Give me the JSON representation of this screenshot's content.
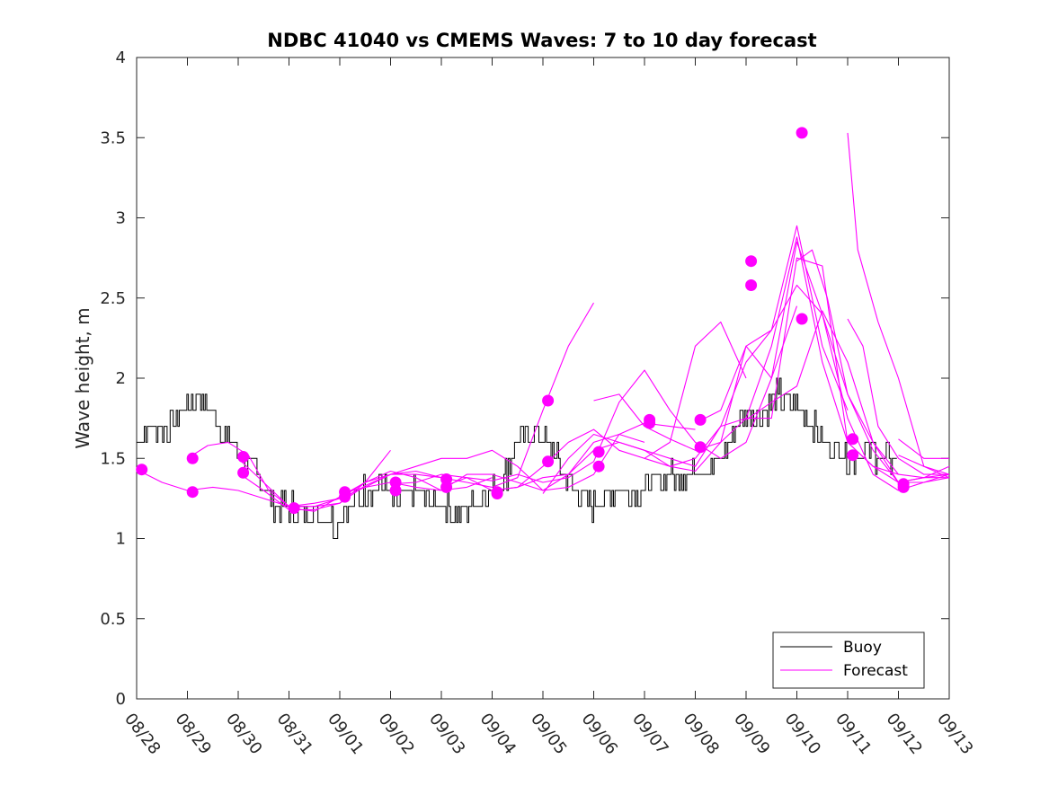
{
  "chart_data": {
    "type": "line",
    "title": "NDBC 41040 vs CMEMS Waves: 7 to 10 day forecast",
    "xlabel": "",
    "ylabel": "Wave height, m",
    "xlim": [
      0,
      16
    ],
    "ylim": [
      0,
      4
    ],
    "x_tick_labels": [
      "08/28",
      "08/29",
      "08/30",
      "08/31",
      "09/01",
      "09/02",
      "09/03",
      "09/04",
      "09/05",
      "09/06",
      "09/07",
      "09/08",
      "09/09",
      "09/10",
      "09/11",
      "09/12",
      "09/13"
    ],
    "y_ticks": [
      0,
      0.5,
      1,
      1.5,
      2,
      2.5,
      3,
      3.5,
      4
    ],
    "y_tick_labels": [
      "0",
      "0.5",
      "1",
      "1.5",
      "2",
      "2.5",
      "3",
      "3.5",
      "4"
    ],
    "legend": {
      "location": "bottom-right",
      "entries": [
        "Buoy",
        "Forecast"
      ]
    },
    "colors": {
      "buoy": "#000000",
      "forecast": "#ff00ff"
    },
    "buoy": {
      "name": "Buoy",
      "x": [
        0,
        0.3,
        0.6,
        0.9,
        1.2,
        1.5,
        1.8,
        2.1,
        2.4,
        2.7,
        3.0,
        3.3,
        3.6,
        3.9,
        4.2,
        4.5,
        4.8,
        5.1,
        5.4,
        5.7,
        6.0,
        6.3,
        6.6,
        6.9,
        7.2,
        7.5,
        7.8,
        8.1,
        8.4,
        8.7,
        9.0,
        9.3,
        9.6,
        9.9,
        10.2,
        10.5,
        10.8,
        11.1,
        11.4,
        11.7,
        12.0,
        12.3,
        12.6,
        12.9,
        13.2,
        13.5,
        13.8,
        14.1,
        14.4,
        14.7,
        15.0
      ],
      "y": [
        1.6,
        1.7,
        1.7,
        1.8,
        1.9,
        1.8,
        1.6,
        1.5,
        1.4,
        1.2,
        1.2,
        1.15,
        1.15,
        1.1,
        1.2,
        1.3,
        1.35,
        1.2,
        1.3,
        1.25,
        1.2,
        1.15,
        1.2,
        1.3,
        1.35,
        1.6,
        1.65,
        1.6,
        1.4,
        1.3,
        1.2,
        1.3,
        1.3,
        1.3,
        1.35,
        1.4,
        1.4,
        1.45,
        1.45,
        1.6,
        1.8,
        1.75,
        1.9,
        1.85,
        1.75,
        1.6,
        1.55,
        1.5,
        1.55,
        1.5,
        1.5
      ]
    },
    "forecast_series": [
      {
        "x": [
          0,
          0.5,
          1.0,
          1.5,
          2.0,
          2.5,
          3.0,
          3.5,
          4.0,
          4.5,
          5.0
        ],
        "y": [
          1.43,
          1.35,
          1.3,
          1.32,
          1.3,
          1.25,
          1.2,
          1.22,
          1.25,
          1.35,
          1.55
        ]
      },
      {
        "x": [
          1.0,
          1.4,
          1.8,
          2.2,
          2.6,
          3.0,
          3.5,
          4.0,
          4.5,
          5.0,
          5.5,
          6.0
        ],
        "y": [
          1.5,
          1.58,
          1.6,
          1.52,
          1.3,
          1.2,
          1.2,
          1.25,
          1.32,
          1.4,
          1.42,
          1.38
        ]
      },
      {
        "x": [
          2.0,
          2.5,
          3.0,
          3.5,
          4.0,
          4.5,
          5.0,
          5.5,
          6.0,
          6.5,
          7.0
        ],
        "y": [
          1.5,
          1.35,
          1.2,
          1.2,
          1.22,
          1.35,
          1.42,
          1.38,
          1.3,
          1.32,
          1.38
        ]
      },
      {
        "x": [
          2.0,
          2.5,
          3.0,
          3.5,
          4.0,
          4.5,
          5.0,
          5.5,
          6.0,
          6.5,
          7.0,
          7.5,
          8.0,
          8.5,
          9.0
        ],
        "y": [
          1.41,
          1.3,
          1.18,
          1.18,
          1.22,
          1.33,
          1.4,
          1.4,
          1.38,
          1.35,
          1.32,
          1.38,
          1.8,
          2.2,
          2.47
        ]
      },
      {
        "x": [
          3.0,
          3.5,
          4.0,
          4.5,
          5.0,
          5.5,
          6.0,
          6.5,
          7.0,
          7.5,
          8.0,
          8.5,
          9.0,
          9.5,
          10.0
        ],
        "y": [
          1.19,
          1.17,
          1.26,
          1.35,
          1.4,
          1.45,
          1.5,
          1.5,
          1.55,
          1.45,
          1.3,
          1.4,
          1.6,
          1.65,
          1.6
        ]
      },
      {
        "x": [
          4.0,
          4.5,
          5.0,
          5.5,
          6.0,
          6.5,
          7.0,
          7.5,
          8.0,
          8.5,
          9.0,
          9.5,
          10.0,
          10.5,
          11.0
        ],
        "y": [
          1.28,
          1.32,
          1.35,
          1.32,
          1.3,
          1.4,
          1.4,
          1.35,
          1.3,
          1.32,
          1.4,
          1.65,
          1.72,
          1.7,
          1.68
        ]
      },
      {
        "x": [
          5.0,
          5.5,
          6.0,
          6.5,
          7.0,
          7.5,
          8.0,
          8.5,
          9.0,
          9.5,
          10.0,
          10.5,
          11.0,
          11.5,
          12.0
        ],
        "y": [
          1.34,
          1.35,
          1.4,
          1.38,
          1.3,
          1.32,
          1.45,
          1.6,
          1.68,
          1.55,
          1.5,
          1.6,
          2.2,
          2.35,
          2.0
        ]
      },
      {
        "x": [
          6.0,
          6.5,
          7.0,
          7.5,
          8.0,
          8.5,
          9.0,
          9.5,
          10.0,
          10.5,
          11.0,
          11.5,
          12.0,
          12.5,
          13.0
        ],
        "y": [
          1.32,
          1.38,
          1.36,
          1.4,
          1.35,
          1.38,
          1.48,
          1.85,
          2.05,
          1.8,
          1.6,
          1.5,
          1.6,
          2.0,
          2.45
        ]
      },
      {
        "x": [
          7.0,
          7.5,
          8.0,
          8.5,
          9.0,
          9.5,
          10.0,
          10.5,
          11.0,
          11.5,
          12.0,
          12.5,
          13.0,
          13.5,
          14.0
        ],
        "y": [
          1.3,
          1.32,
          1.38,
          1.4,
          1.55,
          1.6,
          1.55,
          1.5,
          1.45,
          1.7,
          2.1,
          2.3,
          2.95,
          2.2,
          1.8
        ]
      },
      {
        "x": [
          8.0,
          8.5,
          9.0,
          9.5,
          10.0,
          10.5,
          11.0,
          11.5,
          12.0,
          12.5,
          13.0,
          13.5,
          14.0,
          14.5,
          15.0
        ],
        "y": [
          1.28,
          1.5,
          1.65,
          1.6,
          1.55,
          1.45,
          1.42,
          1.6,
          2.2,
          2.0,
          2.85,
          2.4,
          1.9,
          1.6,
          1.4
        ]
      },
      {
        "x": [
          9.0,
          9.5,
          10.0,
          10.5,
          11.0,
          11.5,
          12.0,
          12.5,
          13.0,
          13.5,
          14.0,
          14.5,
          15.0,
          15.5,
          16.0
        ],
        "y": [
          1.86,
          1.9,
          1.7,
          1.62,
          1.55,
          1.6,
          1.75,
          1.75,
          2.75,
          2.7,
          1.6,
          1.45,
          1.4,
          1.38,
          1.38
        ]
      },
      {
        "x": [
          10.0,
          10.5,
          11.0,
          11.5,
          12.0,
          12.5,
          13.0,
          13.5,
          14.0,
          14.5,
          15.0,
          15.5,
          16.0
        ],
        "y": [
          1.5,
          1.45,
          1.5,
          1.7,
          1.75,
          2.2,
          2.88,
          2.1,
          1.6,
          1.45,
          1.35,
          1.38,
          1.4
        ]
      },
      {
        "x": [
          11.0,
          11.5,
          12.0,
          12.5,
          13.0,
          13.5,
          14.0,
          14.5,
          15.0,
          15.5,
          16.0
        ],
        "y": [
          1.72,
          1.8,
          2.2,
          2.3,
          2.58,
          2.4,
          1.75,
          1.4,
          1.3,
          1.35,
          1.4
        ]
      },
      {
        "x": [
          12.0,
          12.5,
          13.0,
          13.5,
          14.0,
          14.5,
          15.0,
          15.5,
          16.0
        ],
        "y": [
          1.74,
          1.85,
          1.95,
          2.42,
          2.1,
          1.6,
          1.35,
          1.38,
          1.45
        ]
      },
      {
        "x": [
          13.0,
          13.3,
          13.6,
          14.0,
          14.5,
          15.0,
          15.5,
          16.0
        ],
        "y": [
          2.73,
          2.8,
          2.5,
          1.9,
          1.55,
          1.35,
          1.35,
          1.38
        ]
      },
      {
        "x": [
          14.0,
          14.2,
          14.6,
          15.0,
          15.5,
          16.0
        ],
        "y": [
          3.53,
          2.8,
          2.35,
          2.0,
          1.45,
          1.38
        ]
      },
      {
        "x": [
          14.0,
          14.3,
          14.6,
          15.0,
          15.5,
          16.0
        ],
        "y": [
          2.37,
          2.2,
          1.7,
          1.5,
          1.4,
          1.4
        ]
      },
      {
        "x": [
          15.0,
          15.5,
          16.0
        ],
        "y": [
          1.62,
          1.5,
          1.5
        ]
      },
      {
        "x": [
          15.0,
          15.5,
          16.0
        ],
        "y": [
          1.52,
          1.45,
          1.4
        ]
      }
    ],
    "forecast_start_markers": [
      {
        "x": 0.1,
        "y": 1.43
      },
      {
        "x": 1.1,
        "y": 1.5
      },
      {
        "x": 1.1,
        "y": 1.29
      },
      {
        "x": 2.1,
        "y": 1.51
      },
      {
        "x": 2.1,
        "y": 1.41
      },
      {
        "x": 3.1,
        "y": 1.19
      },
      {
        "x": 4.1,
        "y": 1.29
      },
      {
        "x": 4.1,
        "y": 1.26
      },
      {
        "x": 5.1,
        "y": 1.35
      },
      {
        "x": 5.1,
        "y": 1.3
      },
      {
        "x": 6.1,
        "y": 1.37
      },
      {
        "x": 6.1,
        "y": 1.32
      },
      {
        "x": 7.1,
        "y": 1.29
      },
      {
        "x": 7.1,
        "y": 1.28
      },
      {
        "x": 8.1,
        "y": 1.86
      },
      {
        "x": 8.1,
        "y": 1.48
      },
      {
        "x": 9.1,
        "y": 1.54
      },
      {
        "x": 9.1,
        "y": 1.45
      },
      {
        "x": 10.1,
        "y": 1.74
      },
      {
        "x": 10.1,
        "y": 1.72
      },
      {
        "x": 11.1,
        "y": 1.74
      },
      {
        "x": 11.1,
        "y": 1.57
      },
      {
        "x": 12.1,
        "y": 2.73
      },
      {
        "x": 12.1,
        "y": 2.58
      },
      {
        "x": 13.1,
        "y": 3.53
      },
      {
        "x": 13.1,
        "y": 2.37
      },
      {
        "x": 14.1,
        "y": 1.62
      },
      {
        "x": 14.1,
        "y": 1.52
      },
      {
        "x": 15.1,
        "y": 1.34
      },
      {
        "x": 15.1,
        "y": 1.32
      }
    ]
  }
}
